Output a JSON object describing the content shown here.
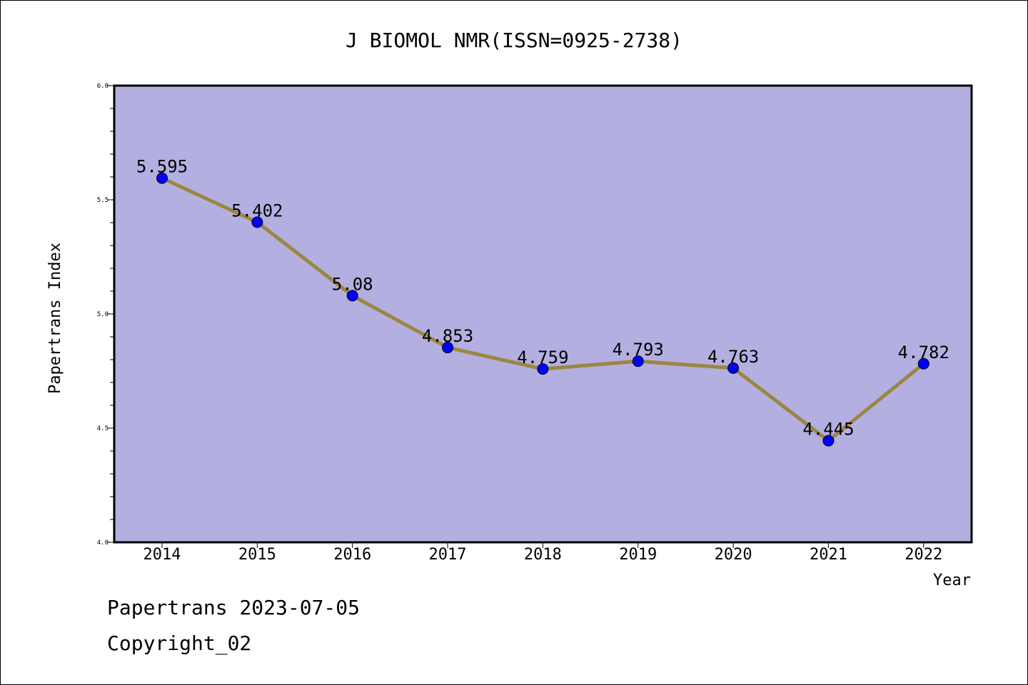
{
  "chart_data": {
    "type": "line",
    "title": "J BIOMOL NMR(ISSN=0925-2738)",
    "xlabel": "Year",
    "ylabel": "Papertrans Index",
    "categories": [
      "2014",
      "2015",
      "2016",
      "2017",
      "2018",
      "2019",
      "2020",
      "2021",
      "2022"
    ],
    "values": [
      5.595,
      5.402,
      5.08,
      4.853,
      4.759,
      4.793,
      4.763,
      4.445,
      4.782
    ],
    "data_labels": [
      "5.595",
      "5.402",
      "5.08",
      "4.853",
      "4.759",
      "4.793",
      "4.763",
      "4.445",
      "4.782"
    ],
    "ylim": [
      4.0,
      6.0
    ],
    "yticks": [
      "4.0",
      "4.5",
      "5.0",
      "5.5",
      "6.0"
    ],
    "grid": false,
    "colors": {
      "plot_background": "#b4afe1",
      "line": "#9b8640",
      "marker": "#0000ff"
    }
  },
  "footer": {
    "line1": "Papertrans 2023-07-05",
    "line2": "Copyright_02"
  }
}
